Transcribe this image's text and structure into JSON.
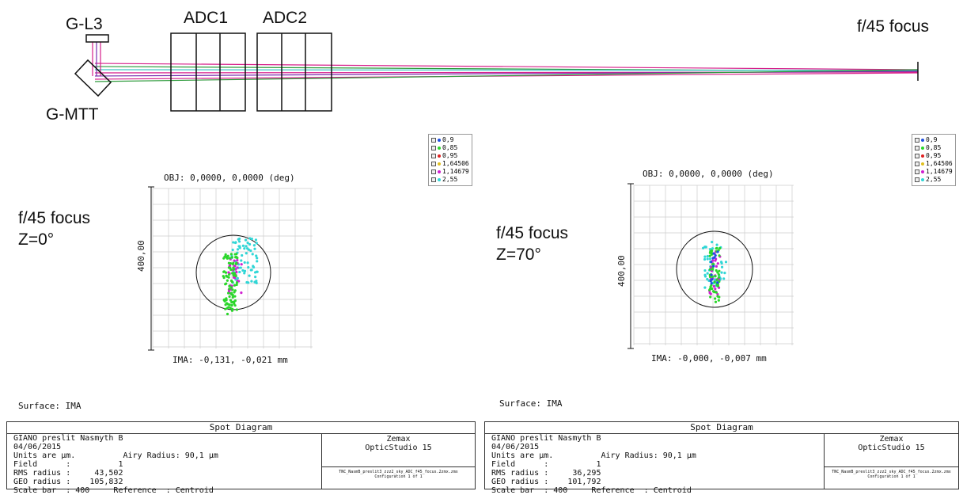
{
  "optics": {
    "labels": {
      "gl3": "G-L3",
      "adc1": "ADC1",
      "adc2": "ADC2",
      "focus": "f/45 focus",
      "gmtt": "G-MTT"
    },
    "colors": {
      "magenta": "#d61f8a",
      "green": "#2e9b3c",
      "cyan": "#3cc6c6",
      "purple": "#7b2fb0"
    }
  },
  "legend": {
    "entries": [
      {
        "label": "0,9",
        "color": "#1f4fe0"
      },
      {
        "label": "0,85",
        "color": "#2bd62b"
      },
      {
        "label": "0,95",
        "color": "#e02020"
      },
      {
        "label": "1,64506",
        "color": "#e0c020"
      },
      {
        "label": "1,14679",
        "color": "#d020d0"
      },
      {
        "label": "2,55",
        "color": "#30d6d6"
      }
    ]
  },
  "spot_left": {
    "side_label_1": "f/45 focus",
    "side_label_2": "Z=0°",
    "obj": "OBJ: 0,0000, 0,0000 (deg)",
    "scale": "400,00",
    "ima": "IMA: -0,131, -0,021 mm",
    "surface": "Surface: IMA",
    "panel": {
      "title": "Spot Diagram",
      "line1": "GIANO preslit Nasmyth B",
      "line2": "04/06/2015",
      "line3": "Units are µm.          Airy Radius: 90,1 µm",
      "line4": "Field      :          1",
      "line5": "RMS radius :     43,502",
      "line6": "GEO radius :    105,832",
      "line7": "Scale bar  : 400     Reference  : Centroid",
      "zemax1": "Zemax",
      "zemax2": "OpticStudio 15",
      "file1": "TNC_NasmB_preslit3_zzz2_sky_ADC_f45_focus.2zmx.zmx",
      "file2": "Configuration 1 of 1"
    }
  },
  "spot_right": {
    "side_label_1": "f/45 focus",
    "side_label_2": "Z=70°",
    "obj": "OBJ: 0,0000, 0,0000 (deg)",
    "scale": "400,00",
    "ima": "IMA: -0,000, -0,007 mm",
    "surface": "Surface: IMA",
    "panel": {
      "title": "Spot Diagram",
      "line1": "GIANO preslit Nasmyth B",
      "line2": "04/06/2015",
      "line3": "Units are µm.          Airy Radius: 90,1 µm",
      "line4": "Field      :          1",
      "line5": "RMS radius :     36,295",
      "line6": "GEO radius :    101,792",
      "line7": "Scale bar  : 400     Reference  : Centroid",
      "zemax1": "Zemax",
      "zemax2": "OpticStudio 15",
      "file1": "TNC_NasmB_preslit3_zzz2_sky_ADC_f45_focus.2zmx.zmx",
      "file2": "Configuration 1 of 1"
    }
  }
}
